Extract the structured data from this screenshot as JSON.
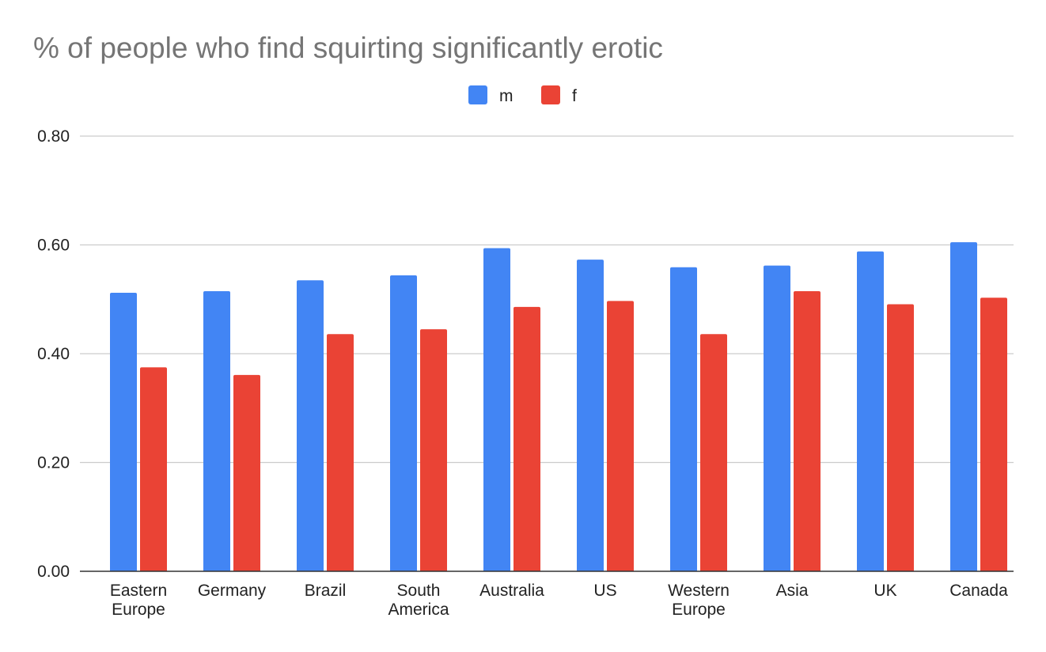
{
  "chart_data": {
    "type": "bar",
    "title": "% of people who find squirting significantly erotic",
    "xlabel": "",
    "ylabel": "",
    "categories": [
      [
        "Eastern",
        "Europe"
      ],
      [
        "Germany"
      ],
      [
        "Brazil"
      ],
      [
        "South",
        "America"
      ],
      [
        "Australia"
      ],
      [
        "US"
      ],
      [
        "Western",
        "Europe"
      ],
      [
        "Asia"
      ],
      [
        "UK"
      ],
      [
        "Canada"
      ]
    ],
    "series": [
      {
        "name": "m",
        "color": "#4285F4",
        "values": [
          0.512,
          0.515,
          0.535,
          0.544,
          0.594,
          0.573,
          0.559,
          0.562,
          0.588,
          0.605
        ]
      },
      {
        "name": "f",
        "color": "#EA4335",
        "values": [
          0.375,
          0.361,
          0.436,
          0.445,
          0.486,
          0.497,
          0.436,
          0.515,
          0.491,
          0.503
        ]
      }
    ],
    "ylim": [
      0,
      0.8
    ],
    "yticks": [
      "0.00",
      "0.20",
      "0.40",
      "0.60",
      "0.80"
    ],
    "ytick_values": [
      0,
      0.2,
      0.4,
      0.6,
      0.8
    ],
    "grid": true,
    "legend_position": "top-center",
    "gridline_color": "#CCCCCC",
    "axis_color": "#333333"
  }
}
